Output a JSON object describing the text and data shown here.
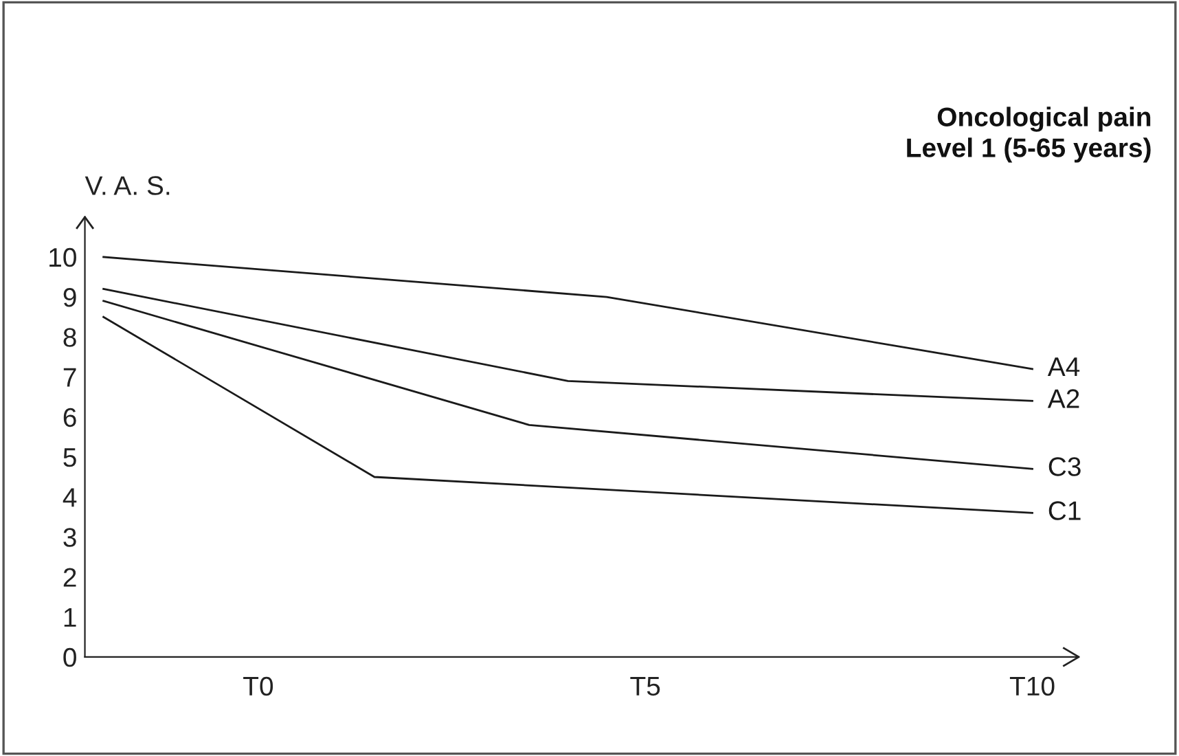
{
  "chart_data": {
    "type": "line",
    "title": "Oncological pain\nLevel 1 (5-65 years)",
    "ylabel": "V. A. S.",
    "categories": [
      null,
      null,
      null,
      null,
      "T0",
      null,
      null,
      null,
      null,
      null,
      null,
      null,
      null,
      null,
      "T5",
      null,
      null,
      null,
      null,
      null,
      null,
      null,
      null,
      null,
      "T10"
    ],
    "ylim": [
      0,
      11
    ],
    "yticks": [
      0,
      1,
      2,
      3,
      4,
      5,
      6,
      7,
      8,
      9,
      10
    ],
    "grid": false,
    "legend": false,
    "marker": "none",
    "line_style": "solid",
    "series": [
      {
        "name": "A4",
        "color": "#1a1a1a",
        "values": [
          10.0,
          null,
          null,
          null,
          null,
          null,
          null,
          null,
          null,
          null,
          null,
          null,
          null,
          9.0,
          null,
          null,
          null,
          null,
          null,
          null,
          null,
          null,
          null,
          null,
          7.2
        ]
      },
      {
        "name": "A2",
        "color": "#1a1a1a",
        "values": [
          9.2,
          null,
          null,
          null,
          null,
          null,
          null,
          null,
          null,
          null,
          null,
          null,
          6.9,
          null,
          null,
          null,
          null,
          null,
          null,
          null,
          null,
          null,
          null,
          null,
          6.4
        ]
      },
      {
        "name": "C3",
        "color": "#1a1a1a",
        "values": [
          8.9,
          null,
          null,
          null,
          null,
          null,
          null,
          null,
          null,
          null,
          null,
          5.8,
          null,
          null,
          null,
          null,
          null,
          null,
          null,
          null,
          null,
          null,
          null,
          null,
          4.7
        ]
      },
      {
        "name": "C1",
        "color": "#1a1a1a",
        "values": [
          8.5,
          null,
          null,
          null,
          null,
          null,
          null,
          4.5,
          null,
          null,
          null,
          null,
          null,
          null,
          null,
          null,
          null,
          null,
          null,
          null,
          null,
          null,
          null,
          null,
          3.6
        ]
      }
    ]
  }
}
